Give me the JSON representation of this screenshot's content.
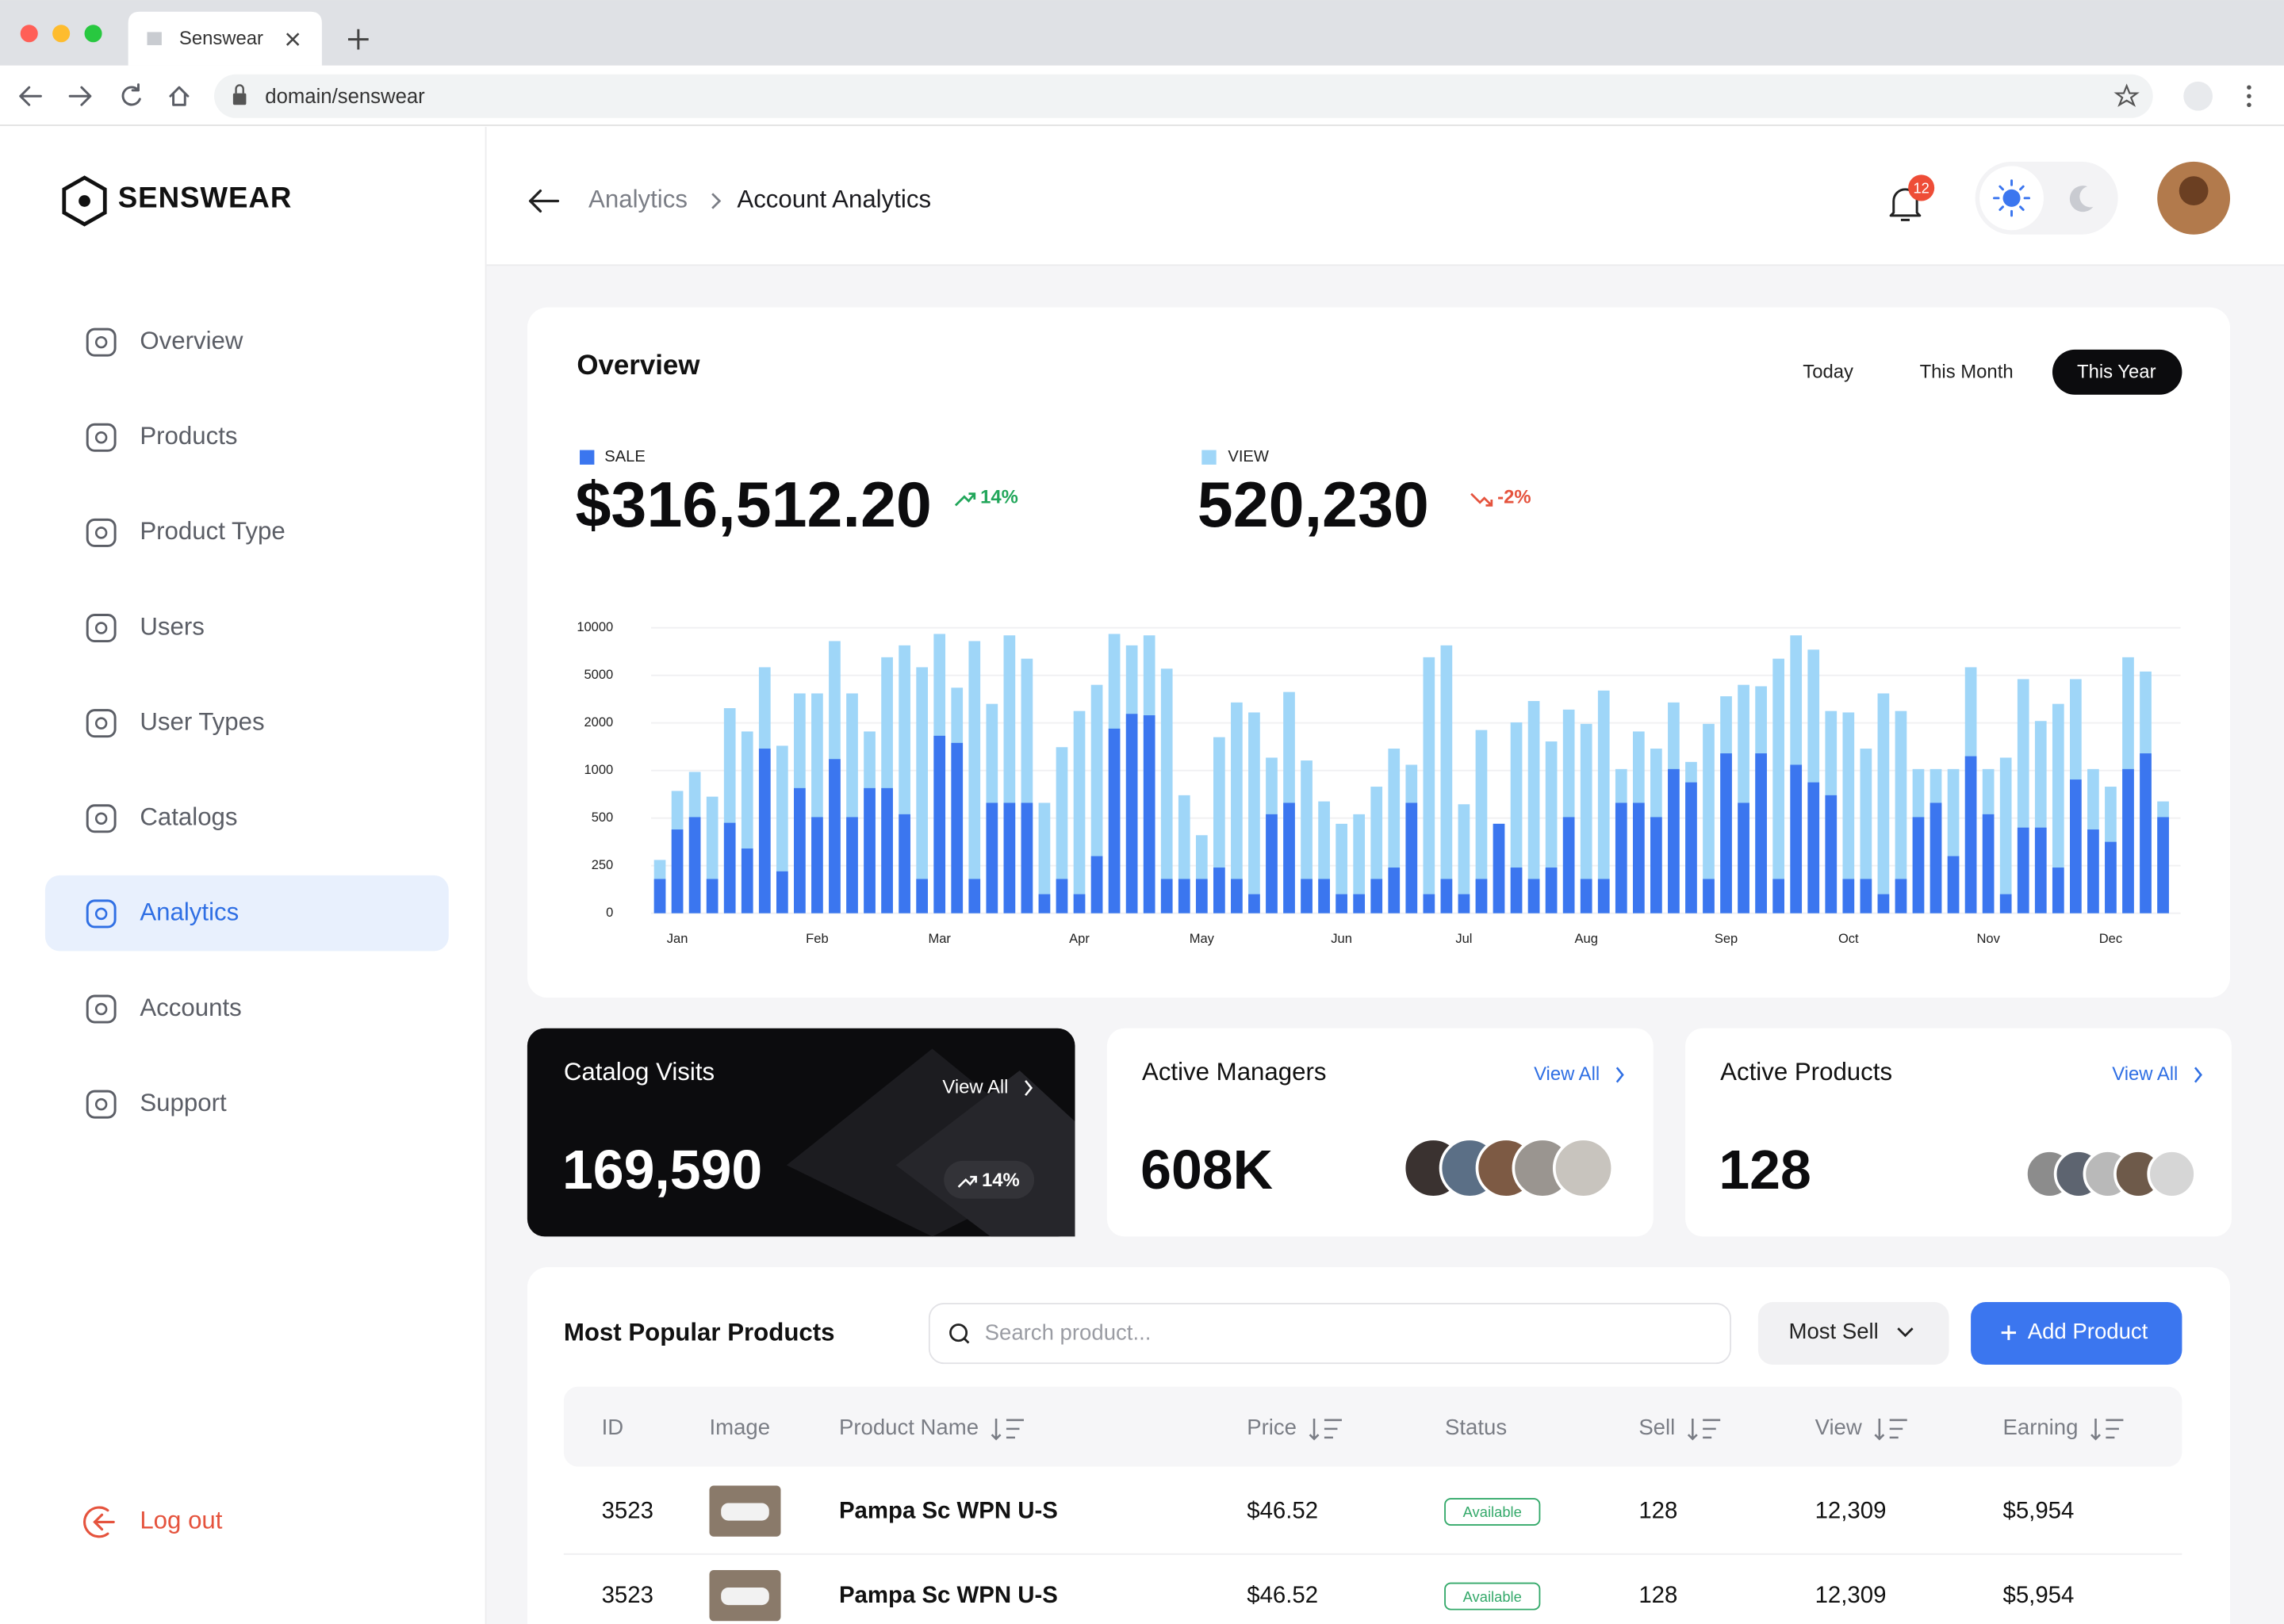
{
  "browser": {
    "tab_title": "Senswear",
    "url": "domain/senswear"
  },
  "sidebar": {
    "brand": "SENSWEAR",
    "nav": [
      "Overview",
      "Products",
      "Product Type",
      "Users",
      "User Types",
      "Catalogs",
      "Analytics",
      "Accounts",
      "Support"
    ],
    "logout": "Log out"
  },
  "header": {
    "breadcrumb": [
      "Analytics",
      "Account Analytics"
    ],
    "notifications": 12
  },
  "overview": {
    "title": "Overview",
    "filters": [
      "Today",
      "This Month",
      "This Year"
    ],
    "sale": {
      "value": "$316,512.20",
      "change": "14%"
    },
    "view": {
      "value": "520,230",
      "change": "-2%"
    },
    "chart_data": {
      "type": "bar",
      "categories": [
        null,
        "Jan",
        null,
        null,
        null,
        null,
        null,
        null,
        null,
        "Feb",
        null,
        null,
        null,
        null,
        null,
        null,
        "Mar",
        null,
        null,
        null,
        null,
        null,
        null,
        null,
        "Apr",
        null,
        null,
        null,
        null,
        null,
        null,
        "May",
        null,
        null,
        null,
        null,
        null,
        null,
        null,
        "Jun",
        null,
        null,
        null,
        null,
        null,
        null,
        "Jul",
        null,
        null,
        null,
        null,
        null,
        null,
        "Aug",
        null,
        null,
        null,
        null,
        null,
        null,
        null,
        "Sep",
        null,
        null,
        null,
        null,
        null,
        null,
        "Oct",
        null,
        null,
        null,
        null,
        null,
        null,
        null,
        "Nov",
        null,
        null,
        null,
        null,
        null,
        null,
        "Dec",
        null,
        null,
        null
      ],
      "series": [
        {
          "name": "VIEW",
          "color": "#9fd6f8",
          "values": [
            280,
            785,
            985,
            725,
            2930,
            1820,
            5850,
            1520,
            3860,
            3860,
            8600,
            3860,
            1820,
            6900,
            8150,
            5850,
            9350,
            4220,
            8600,
            3200,
            9200,
            6750,
            660,
            1490,
            2750,
            4400,
            9350,
            8150,
            9200,
            5700,
            740,
            410,
            1700,
            3290,
            2660,
            1270,
            3950,
            1210,
            675,
            470,
            540,
            830,
            1460,
            1120,
            6900,
            8150,
            645,
            1850,
            470,
            2030,
            3380,
            1610,
            2840,
            1980,
            4040,
            1030,
            1820,
            1460,
            3290,
            1180,
            1980,
            3680,
            4400,
            4310,
            6750,
            9200,
            7700,
            2750,
            2660,
            1460,
            3860,
            2750,
            1030,
            1030,
            1030,
            5850,
            1030,
            1270,
            4760,
            2120,
            3200,
            4760,
            1030,
            830,
            6900,
            5400,
            675
          ]
        },
        {
          "name": "SALE",
          "color": "#3b76ef",
          "values": [
            180,
            440,
            510,
            180,
            475,
            340,
            1460,
            220,
            815,
            510,
            1240,
            510,
            815,
            815,
            540,
            180,
            1730,
            1580,
            180,
            660,
            660,
            660,
            100,
            180,
            100,
            300,
            1880,
            2570,
            2480,
            180,
            180,
            180,
            240,
            180,
            100,
            540,
            660,
            180,
            180,
            100,
            100,
            180,
            240,
            660,
            100,
            180,
            100,
            180,
            470,
            240,
            180,
            240,
            510,
            180,
            180,
            660,
            660,
            510,
            1030,
            875,
            180,
            1360,
            660,
            1360,
            180,
            1120,
            875,
            740,
            180,
            180,
            100,
            180,
            510,
            660,
            300,
            1300,
            540,
            100,
            450,
            450,
            240,
            905,
            440,
            375,
            1030,
            1360,
            510
          ]
        }
      ],
      "ylim": [
        0,
        10000
      ],
      "yticks": [
        0,
        250,
        500,
        1000,
        2000,
        5000,
        10000
      ],
      "grid": true
    }
  },
  "cards": [
    {
      "title": "Catalog Visits",
      "link": "View All",
      "value": "169,590",
      "change": "14%"
    },
    {
      "title": "Active Managers",
      "link": "View All",
      "value": "608K"
    },
    {
      "title": "Active Products",
      "link": "View All",
      "value": "128"
    }
  ],
  "table": {
    "title": "Most Popular Products",
    "search_placeholder": "Search product...",
    "sort": "Most Sell",
    "add_button": "Add Product",
    "columns": [
      "ID",
      "Image",
      "Product Name",
      "Price",
      "Status",
      "Sell",
      "View",
      "Earning"
    ],
    "rows": [
      {
        "id": 3523,
        "product_name": "Pampa Sc WPN U-S",
        "price": "$46.52",
        "status": "Available",
        "sell": 128,
        "view": "12,309",
        "earning": "$5,954"
      },
      {
        "id": 3523,
        "product_name": "Pampa Sc WPN U-S",
        "price": "$46.52",
        "status": "Available",
        "sell": 128,
        "view": "12,309",
        "earning": "$5,954"
      }
    ]
  }
}
